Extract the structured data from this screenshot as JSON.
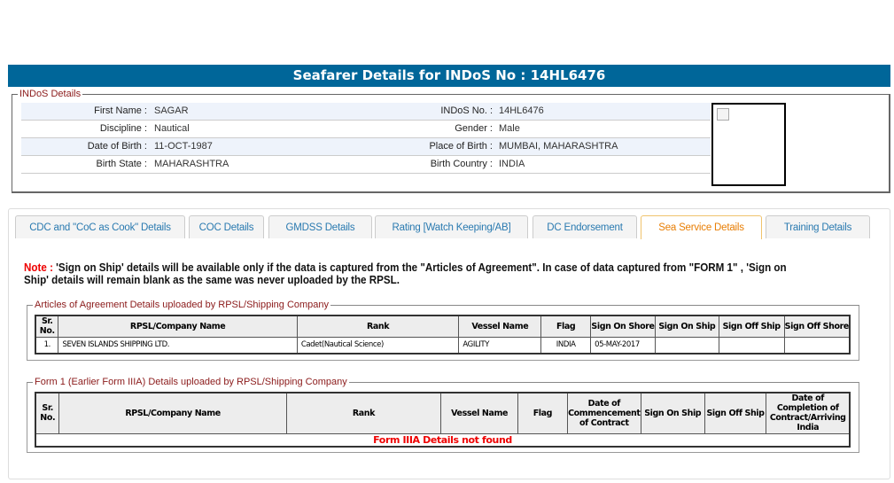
{
  "header": {
    "title": "Seafarer Details for INDoS No : 14HL6476"
  },
  "indos": {
    "legend": "INDoS Details",
    "rows": [
      {
        "l1": "First Name :",
        "v1": "SAGAR",
        "l2": "INDoS No. :",
        "v2": "14HL6476"
      },
      {
        "l1": "Discipline :",
        "v1": "Nautical",
        "l2": "Gender :",
        "v2": "Male"
      },
      {
        "l1": "Date of Birth :",
        "v1": "11-OCT-1987",
        "l2": "Place of Birth :",
        "v2": "MUMBAI, MAHARASHTRA"
      },
      {
        "l1": "Birth State :",
        "v1": "MAHARASHTRA",
        "l2": "Birth Country :",
        "v2": "INDIA"
      }
    ]
  },
  "tabs": [
    "CDC and \"CoC as Cook\" Details",
    "COC Details",
    "GMDSS Details",
    "Rating [Watch Keeping/AB]",
    "DC Endorsement",
    "Sea Service Details",
    "Training Details"
  ],
  "active_tab": "Sea Service Details",
  "note": {
    "label": "Note :",
    "text": " 'Sign on Ship' details will be available only if the data is captured from the \"Articles of Agreement\". In case of data captured from \"FORM 1\" , 'Sign on Ship' details will remain blank as the same was never uploaded by the RPSL."
  },
  "articles": {
    "legend": "Articles of Agreement Details uploaded by RPSL/Shipping Company",
    "headers": [
      "Sr. No.",
      "RPSL/Company Name",
      "Rank",
      "Vessel Name",
      "Flag",
      "Sign On Shore",
      "Sign On Ship",
      "Sign Off Ship",
      "Sign Off Shore"
    ],
    "rows": [
      [
        "1.",
        "SEVEN ISLANDS SHIPPING LTD.",
        "Cadet(Nautical Science)",
        "AGILITY",
        "INDIA",
        "05-MAY-2017",
        "",
        "",
        ""
      ]
    ]
  },
  "form1": {
    "legend": "Form 1 (Earlier Form IIIA) Details uploaded by RPSL/Shipping Company",
    "headers": [
      "Sr. No.",
      "RPSL/Company Name",
      "Rank",
      "Vessel Name",
      "Flag",
      "Date of Commencement of Contract",
      "Sign On Ship",
      "Sign Off Ship",
      "Date of Completion of Contract/Arriving India"
    ],
    "empty_message": "Form IIIA Details not found"
  }
}
